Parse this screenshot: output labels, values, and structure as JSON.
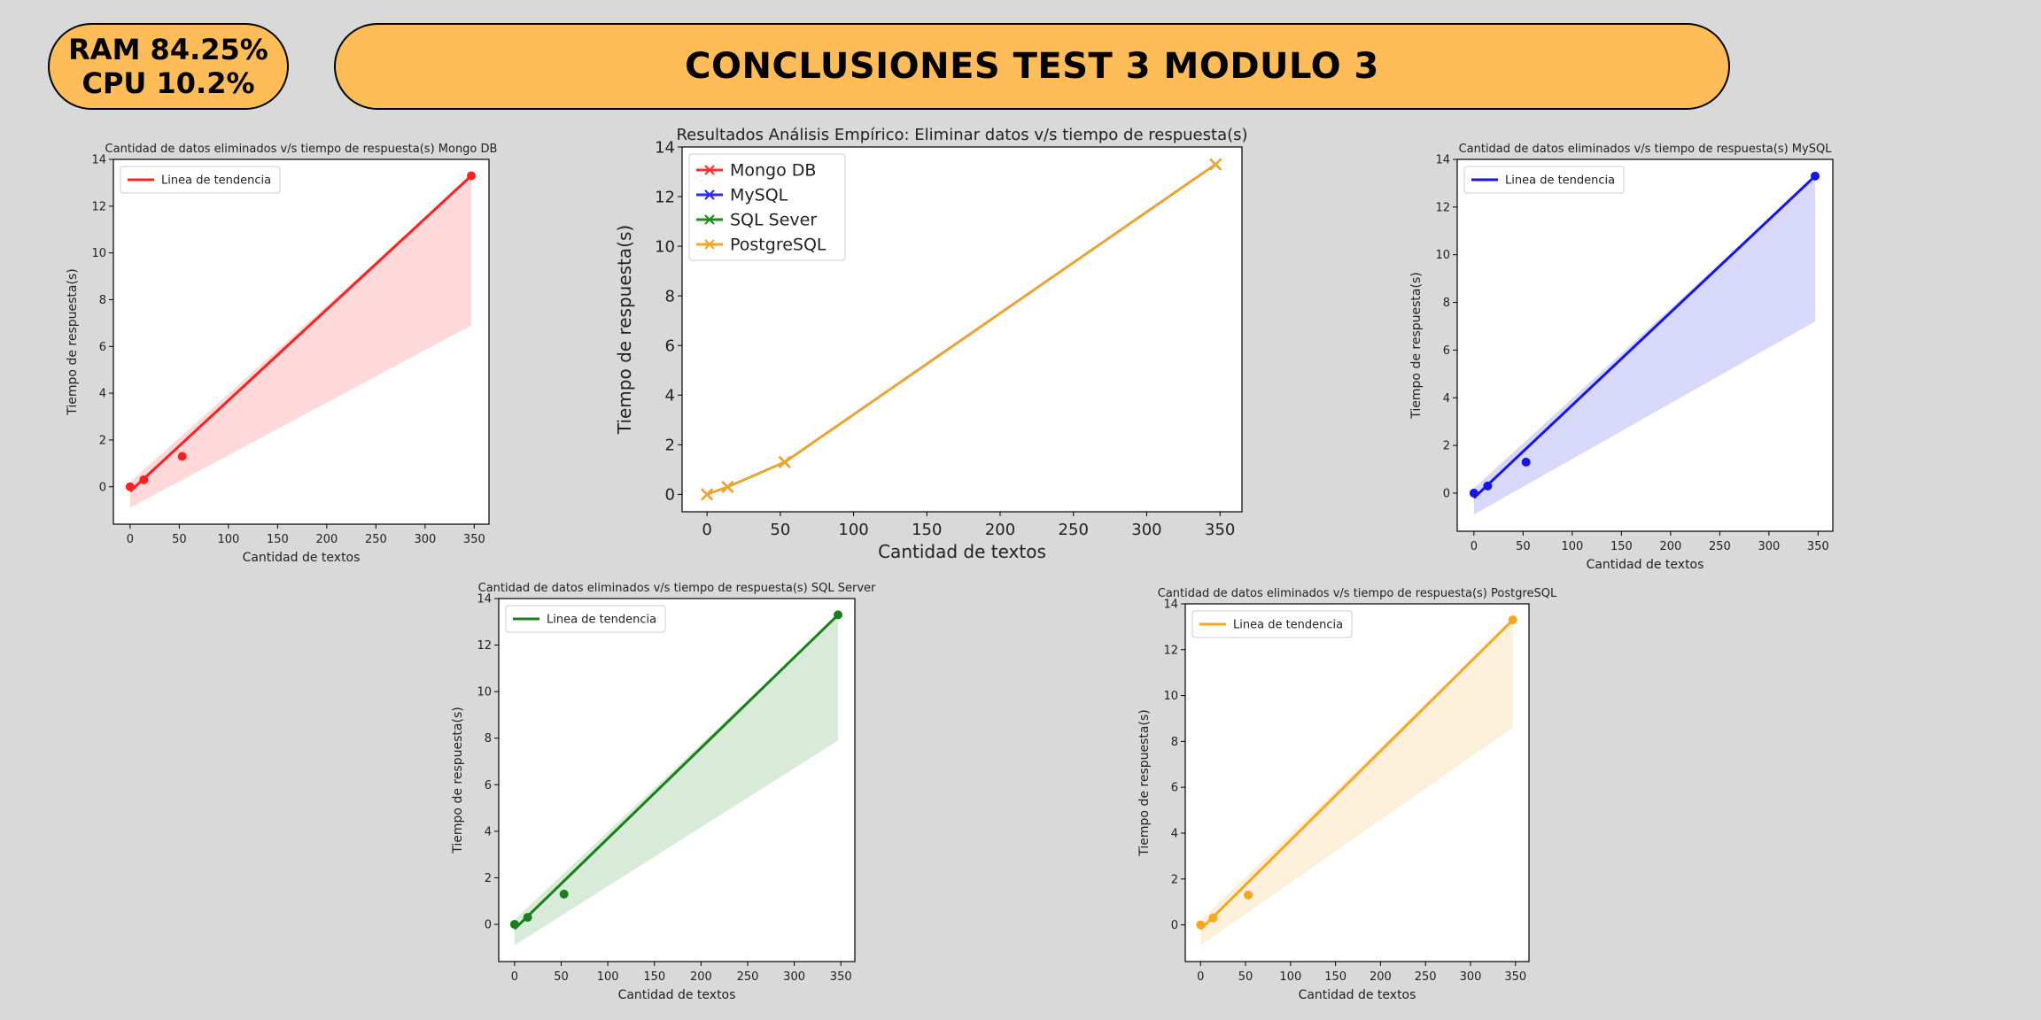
{
  "header": {
    "ram_text": "RAM 84.25%",
    "cpu_text": "CPU 10.2%",
    "title": "CONCLUSIONES TEST 3 MODULO 3"
  },
  "chart_data": [
    {
      "id": "mongo",
      "type": "scatter",
      "title": "Cantidad de datos eliminados v/s tiempo de respuesta(s) Mongo DB",
      "xlabel": "Cantidad de textos",
      "ylabel": "Tiempo de respuesta(s)",
      "xlim": [
        -17,
        365
      ],
      "ylim": [
        -1.6,
        14
      ],
      "xticks": [
        0,
        50,
        100,
        150,
        200,
        250,
        300,
        350
      ],
      "yticks": [
        0,
        2,
        4,
        6,
        8,
        10,
        12,
        14
      ],
      "legend_position": "top-left",
      "color": "#ff2020",
      "series": [
        {
          "name": "Linea de tendencia",
          "x": [
            0,
            14,
            53,
            347
          ],
          "y": [
            0.0,
            0.3,
            1.3,
            13.3
          ]
        }
      ],
      "trend": {
        "x": [
          0,
          347
        ],
        "y": [
          -0.2,
          13.3
        ]
      },
      "band": {
        "x": [
          0,
          347
        ],
        "upper": [
          0.2,
          13.3
        ],
        "lower": [
          -0.9,
          6.9
        ]
      }
    },
    {
      "id": "combined",
      "type": "line",
      "title": "Resultados Análisis Empírico: Eliminar datos v/s tiempo de respuesta(s)",
      "xlabel": "Cantidad de textos",
      "ylabel": "Tiempo de respuesta(s)",
      "xlim": [
        -17,
        365
      ],
      "ylim": [
        -0.7,
        14
      ],
      "xticks": [
        0,
        50,
        100,
        150,
        200,
        250,
        300,
        350
      ],
      "yticks": [
        0,
        2,
        4,
        6,
        8,
        10,
        12,
        14
      ],
      "legend_position": "top-left",
      "series": [
        {
          "name": "Mongo DB",
          "color": "#ff3030",
          "x": [
            0,
            14,
            53,
            347
          ],
          "y": [
            0.0,
            0.3,
            1.3,
            13.3
          ]
        },
        {
          "name": "MySQL",
          "color": "#2b2bff",
          "x": [
            0,
            14,
            53,
            347
          ],
          "y": [
            0.0,
            0.3,
            1.3,
            13.3
          ]
        },
        {
          "name": "SQL Sever",
          "color": "#1e8c1e",
          "x": [
            0,
            14,
            53,
            347
          ],
          "y": [
            0.0,
            0.3,
            1.3,
            13.3
          ]
        },
        {
          "name": "PostgreSQL",
          "color": "#f5a623",
          "x": [
            0,
            14,
            53,
            347
          ],
          "y": [
            0.0,
            0.3,
            1.3,
            13.3
          ]
        }
      ]
    },
    {
      "id": "mysql",
      "type": "scatter",
      "title": "Cantidad de datos eliminados v/s tiempo de respuesta(s) MySQL",
      "xlabel": "Cantidad de textos",
      "ylabel": "Tiempo de respuesta(s)",
      "xlim": [
        -17,
        365
      ],
      "ylim": [
        -1.6,
        14
      ],
      "xticks": [
        0,
        50,
        100,
        150,
        200,
        250,
        300,
        350
      ],
      "yticks": [
        0,
        2,
        4,
        6,
        8,
        10,
        12,
        14
      ],
      "legend_position": "top-left",
      "color": "#1515e8",
      "series": [
        {
          "name": "Linea de tendencia",
          "x": [
            0,
            14,
            53,
            347
          ],
          "y": [
            0.0,
            0.3,
            1.3,
            13.3
          ]
        }
      ],
      "trend": {
        "x": [
          0,
          347
        ],
        "y": [
          -0.2,
          13.3
        ]
      },
      "band": {
        "x": [
          0,
          347
        ],
        "upper": [
          0.2,
          13.3
        ],
        "lower": [
          -0.9,
          7.2
        ]
      }
    },
    {
      "id": "sqlserver",
      "type": "scatter",
      "title": "Cantidad de datos eliminados v/s tiempo de respuesta(s) SQL Server",
      "xlabel": "Cantidad de textos",
      "ylabel": "Tiempo de respuesta(s)",
      "xlim": [
        -17,
        365
      ],
      "ylim": [
        -1.6,
        14
      ],
      "xticks": [
        0,
        50,
        100,
        150,
        200,
        250,
        300,
        350
      ],
      "yticks": [
        0,
        2,
        4,
        6,
        8,
        10,
        12,
        14
      ],
      "legend_position": "top-left",
      "color": "#1a801a",
      "series": [
        {
          "name": "Linea de tendencia",
          "x": [
            0,
            14,
            53,
            347
          ],
          "y": [
            0.0,
            0.3,
            1.3,
            13.3
          ]
        }
      ],
      "trend": {
        "x": [
          0,
          347
        ],
        "y": [
          -0.2,
          13.3
        ]
      },
      "band": {
        "x": [
          0,
          347
        ],
        "upper": [
          0.2,
          13.3
        ],
        "lower": [
          -0.9,
          7.9
        ]
      }
    },
    {
      "id": "postgres",
      "type": "scatter",
      "title": "Cantidad de datos eliminados v/s tiempo de respuesta(s) PostgreSQL",
      "xlabel": "Cantidad de textos",
      "ylabel": "Tiempo de respuesta(s)",
      "xlim": [
        -17,
        365
      ],
      "ylim": [
        -1.6,
        14
      ],
      "xticks": [
        0,
        50,
        100,
        150,
        200,
        250,
        300,
        350
      ],
      "yticks": [
        0,
        2,
        4,
        6,
        8,
        10,
        12,
        14
      ],
      "legend_position": "top-left",
      "color": "#f5a623",
      "series": [
        {
          "name": "Linea de tendencia",
          "x": [
            0,
            14,
            53,
            347
          ],
          "y": [
            0.0,
            0.3,
            1.3,
            13.3
          ]
        }
      ],
      "trend": {
        "x": [
          0,
          347
        ],
        "y": [
          -0.2,
          13.3
        ]
      },
      "band": {
        "x": [
          0,
          347
        ],
        "upper": [
          0.2,
          13.3
        ],
        "lower": [
          -0.9,
          8.6
        ]
      }
    }
  ]
}
